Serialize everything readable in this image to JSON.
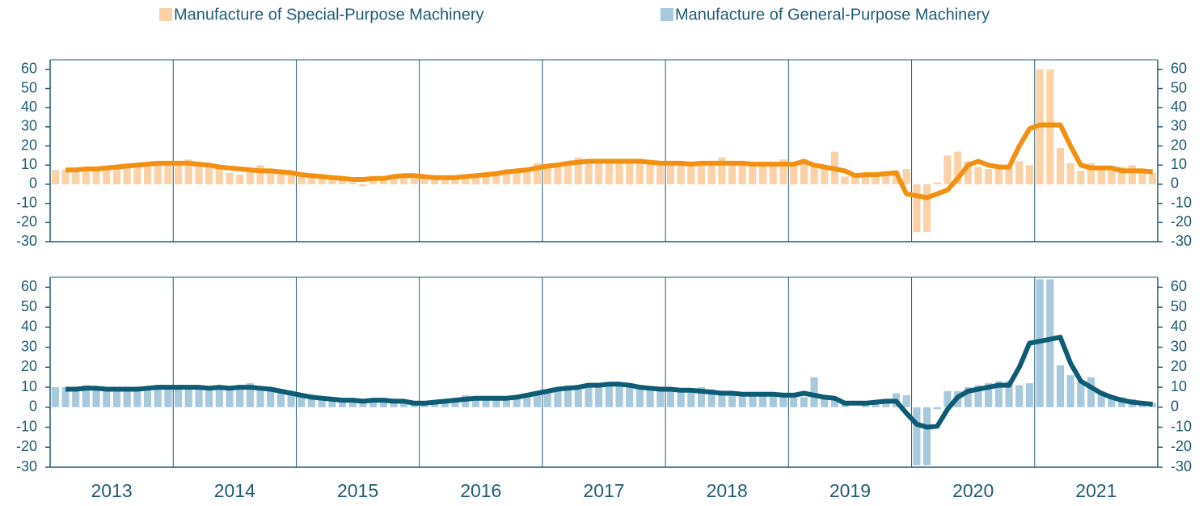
{
  "chart_data": [
    {
      "type": "bar",
      "ylim": [
        -30,
        65
      ],
      "yticks": [
        -30,
        -20,
        -10,
        0,
        10,
        20,
        30,
        40,
        50,
        60
      ],
      "series": [
        {
          "name": "Manufacture of Special-Purpose Machinery",
          "type": "bar",
          "color": "#fdd1a6",
          "values": [
            7.5,
            7.5,
            8,
            8.5,
            8,
            9,
            9.5,
            10,
            11,
            10,
            10.5,
            11,
            12,
            13,
            11,
            10,
            9,
            6,
            5,
            7,
            10,
            7,
            6,
            6,
            5,
            5,
            4,
            3,
            2,
            1,
            -1,
            2,
            3,
            4,
            4,
            5,
            4,
            3,
            3,
            3,
            4,
            5,
            5,
            6,
            7,
            8,
            8,
            11,
            10,
            11,
            12,
            14,
            13,
            12,
            12,
            12,
            11,
            12,
            11,
            12,
            11,
            11,
            11,
            12,
            12,
            14,
            12,
            11,
            10,
            10,
            11,
            13,
            11,
            13,
            9,
            9,
            17,
            4,
            5,
            5,
            6,
            6,
            7,
            8,
            -25,
            -25,
            1,
            15,
            17,
            12,
            9,
            8,
            9,
            9,
            12,
            10,
            60,
            60,
            19,
            11,
            7,
            11,
            9,
            9,
            9,
            10,
            7,
            6
          ]
        },
        {
          "type": "line",
          "color": "#f29111",
          "values": [
            null,
            7.5,
            7.5,
            8,
            8,
            8.5,
            9,
            9.5,
            10,
            10.5,
            11,
            11,
            11,
            11,
            10.5,
            10,
            9,
            8.5,
            8,
            7.5,
            7,
            7,
            6.5,
            6,
            5,
            4.5,
            4,
            3.5,
            3,
            2.5,
            2.5,
            3,
            3,
            4,
            4.5,
            4.5,
            4,
            3.5,
            3.5,
            3.5,
            4,
            4.5,
            5,
            5.5,
            6.5,
            7,
            7.5,
            8.5,
            9.5,
            10,
            11,
            11.5,
            12,
            12,
            12,
            12,
            12,
            12,
            11.5,
            11,
            11,
            11,
            10.5,
            11,
            11,
            11,
            11,
            11,
            10.5,
            10.5,
            10.5,
            10.5,
            10.5,
            12,
            10,
            9,
            8,
            7,
            4.5,
            5,
            5,
            5.5,
            6,
            -5,
            -6,
            -7,
            -5,
            -3,
            3,
            10,
            12,
            10,
            9,
            9,
            20,
            29,
            31,
            31,
            31,
            20,
            10,
            8.5,
            8.5,
            8.5,
            7,
            7,
            7,
            6.5
          ]
        }
      ]
    },
    {
      "type": "bar",
      "ylim": [
        -30,
        65
      ],
      "yticks": [
        -30,
        -20,
        -10,
        0,
        10,
        20,
        30,
        40,
        50,
        60
      ],
      "categories": [
        null,
        null,
        null,
        null,
        null,
        null,
        "2013",
        null,
        null,
        null,
        null,
        null,
        null,
        null,
        null,
        null,
        null,
        null,
        "2014",
        null,
        null,
        null,
        null,
        null,
        null,
        null,
        null,
        null,
        null,
        null,
        "2015",
        null,
        null,
        null,
        null,
        null,
        null,
        null,
        null,
        null,
        null,
        null,
        "2016",
        null,
        null,
        null,
        null,
        null,
        null,
        null,
        null,
        null,
        null,
        null,
        "2017",
        null,
        null,
        null,
        null,
        null,
        null,
        null,
        null,
        null,
        null,
        null,
        "2018",
        null,
        null,
        null,
        null,
        null,
        null,
        null,
        null,
        null,
        null,
        null,
        "2019",
        null,
        null,
        null,
        null,
        null,
        null,
        null,
        null,
        null,
        null,
        null,
        "2020",
        null,
        null,
        null,
        null,
        null,
        null,
        null,
        null,
        null,
        null,
        null,
        "2021",
        null,
        null,
        null,
        null,
        null
      ],
      "series": [
        {
          "name": "Manufacture of General-Purpose Machinery",
          "type": "bar",
          "color": "#a7c9dd",
          "values": [
            10,
            10,
            10,
            11,
            10,
            10,
            9,
            9,
            10,
            9,
            10,
            10,
            10,
            10,
            10,
            9,
            10,
            10,
            10,
            12,
            10,
            9,
            9,
            8,
            7,
            6,
            5,
            4,
            4,
            3,
            3,
            3,
            3,
            2,
            2,
            2,
            2,
            2,
            3,
            3,
            6,
            4,
            4,
            4,
            5,
            6,
            7,
            8,
            9,
            9,
            11,
            11,
            10,
            11,
            12,
            11,
            11,
            10,
            9,
            9,
            9,
            9,
            9,
            10,
            9,
            8,
            8,
            7,
            7,
            6,
            6,
            6,
            6,
            5,
            15,
            5,
            4,
            2,
            0,
            2,
            2,
            3,
            7,
            6,
            -29,
            -29,
            -1,
            8,
            8,
            10,
            11,
            12,
            13,
            13,
            11,
            12,
            64,
            64,
            21,
            16,
            13,
            15,
            8,
            6,
            5,
            4,
            3,
            2
          ]
        },
        {
          "type": "line",
          "color": "#0d5b74",
          "values": [
            null,
            9,
            9,
            9.5,
            9.5,
            9,
            9,
            9,
            9,
            9.5,
            10,
            10,
            10,
            10,
            10,
            9.5,
            10,
            9.5,
            10,
            10,
            9.5,
            9,
            8,
            7,
            6,
            5,
            4.5,
            4,
            3.5,
            3.5,
            3,
            3.5,
            3.5,
            3,
            3,
            2,
            2,
            2.5,
            3,
            3.5,
            4,
            4.5,
            4.5,
            4.5,
            4.5,
            5,
            6,
            7,
            8,
            9,
            9.5,
            10,
            11,
            11,
            11.5,
            11.5,
            11,
            10,
            9.5,
            9,
            9,
            8.5,
            8.5,
            8,
            7.5,
            7,
            7,
            6.5,
            6.5,
            6.5,
            6.5,
            6,
            6,
            7,
            6,
            5,
            4.5,
            2,
            2,
            2,
            2.5,
            3,
            3,
            -3,
            -8.5,
            -10,
            -9.5,
            -1,
            5,
            8,
            9,
            10,
            11,
            11,
            20,
            32,
            33,
            34,
            35,
            22,
            13,
            10,
            7,
            5,
            3.5,
            2.5,
            2,
            1.5
          ]
        }
      ]
    }
  ]
}
